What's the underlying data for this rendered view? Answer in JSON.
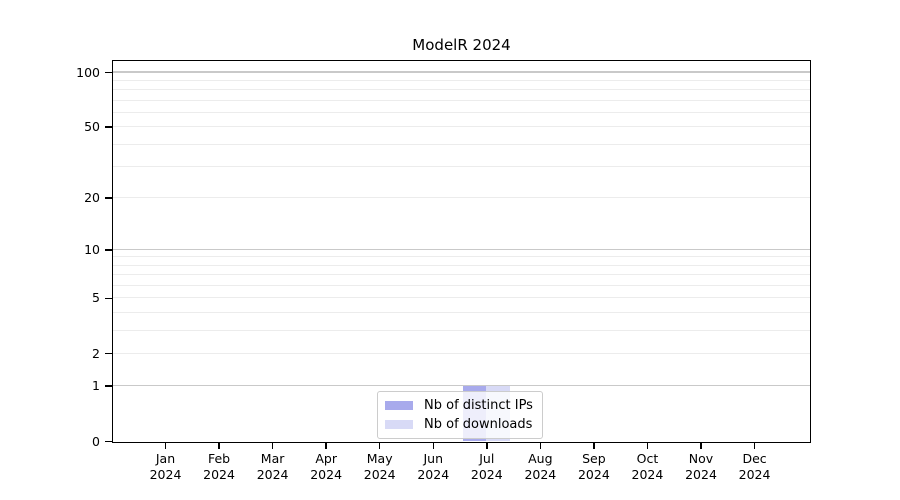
{
  "chart_data": {
    "type": "bar",
    "title": "ModelR 2024",
    "categories": [
      "Jan",
      "Feb",
      "Mar",
      "Apr",
      "May",
      "Jun",
      "Jul",
      "Aug",
      "Sep",
      "Oct",
      "Nov",
      "Dec"
    ],
    "year": "2024",
    "series": [
      {
        "name": "Nb of distinct IPs",
        "color": "#a8aaec",
        "values": [
          0,
          0,
          0,
          0,
          0,
          0,
          1,
          0,
          0,
          0,
          0,
          0
        ]
      },
      {
        "name": "Nb of downloads",
        "color": "#d8daf6",
        "values": [
          0,
          0,
          0,
          0,
          0,
          0,
          1,
          0,
          0,
          0,
          0,
          0
        ]
      }
    ],
    "y_scale": "log1p",
    "ylim": [
      0,
      115
    ],
    "yticks": [
      0,
      1,
      2,
      5,
      10,
      20,
      50,
      100
    ],
    "grid": {
      "major_values": [
        1,
        10,
        100
      ],
      "minor_values": [
        2,
        3,
        4,
        5,
        6,
        7,
        8,
        9,
        20,
        30,
        40,
        50,
        60,
        70,
        80,
        90
      ],
      "major_color": "#c9c9c9",
      "minor_color": "#ececec"
    },
    "axis_color": "#000000",
    "legend_position": "lower center"
  }
}
